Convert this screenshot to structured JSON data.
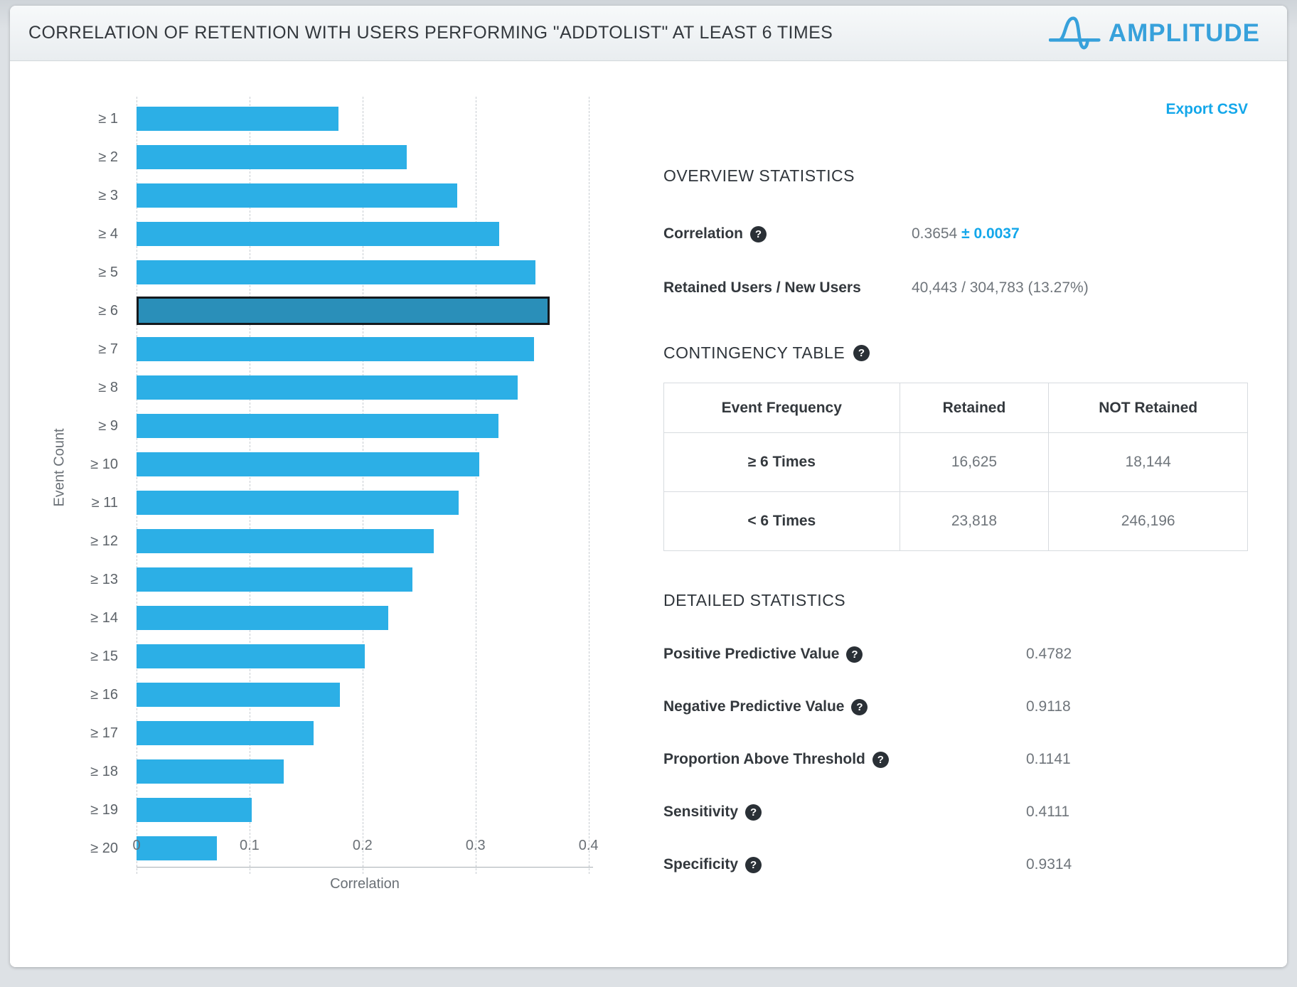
{
  "header": {
    "title": "CORRELATION OF RETENTION WITH USERS PERFORMING \"ADDTOLIST\" AT LEAST 6 TIMES",
    "brand": "AMPLITUDE"
  },
  "toolbar": {
    "export_csv_label": "Export CSV"
  },
  "colors": {
    "bar_blue": "#2CAFE6",
    "bar_highlight": "#2A8FB9",
    "accent_blue": "#13A7EA",
    "logo_blue": "#37A1DB"
  },
  "chart_data": {
    "type": "bar",
    "orientation": "horizontal",
    "title": "",
    "xlabel": "Correlation",
    "ylabel": "Event Count",
    "categories": [
      "≥ 1",
      "≥ 2",
      "≥ 3",
      "≥ 4",
      "≥ 5",
      "≥ 6",
      "≥ 7",
      "≥ 8",
      "≥ 9",
      "≥ 10",
      "≥ 11",
      "≥ 12",
      "≥ 13",
      "≥ 14",
      "≥ 15",
      "≥ 16",
      "≥ 17",
      "≥ 18",
      "≥ 19",
      "≥ 20"
    ],
    "values": [
      0.179,
      0.239,
      0.284,
      0.321,
      0.353,
      0.3654,
      0.352,
      0.337,
      0.32,
      0.303,
      0.285,
      0.263,
      0.244,
      0.223,
      0.202,
      0.18,
      0.157,
      0.13,
      0.102,
      0.071
    ],
    "highlight_index": 5,
    "xlim": [
      0,
      0.404
    ],
    "xticks": [
      "0",
      "0.1",
      "0.2",
      "0.3",
      "0.4"
    ],
    "xtick_values": [
      0,
      0.1,
      0.2,
      0.3,
      0.4
    ],
    "grid": "dashed-vertical",
    "legend": "none"
  },
  "overview": {
    "heading": "OVERVIEW STATISTICS",
    "correlation_label": "Correlation",
    "correlation_value": "0.3654",
    "correlation_margin": "± 0.0037",
    "retained_label": "Retained Users / New Users",
    "retained_value": "40,443 / 304,783 (13.27%)"
  },
  "contingency_table": {
    "heading": "CONTINGENCY TABLE",
    "columns": [
      "Event Frequency",
      "Retained",
      "NOT Retained"
    ],
    "rows": [
      {
        "freq": "≥ 6 Times",
        "retained": "16,625",
        "not_retained": "18,144"
      },
      {
        "freq": "< 6 Times",
        "retained": "23,818",
        "not_retained": "246,196"
      }
    ]
  },
  "detailed_statistics": {
    "heading": "DETAILED STATISTICS",
    "rows": [
      {
        "label": "Positive Predictive Value",
        "value": "0.4782"
      },
      {
        "label": "Negative Predictive Value",
        "value": "0.9118"
      },
      {
        "label": "Proportion Above Threshold",
        "value": "0.1141"
      },
      {
        "label": "Sensitivity",
        "value": "0.4111"
      },
      {
        "label": "Specificity",
        "value": "0.9314"
      }
    ]
  }
}
